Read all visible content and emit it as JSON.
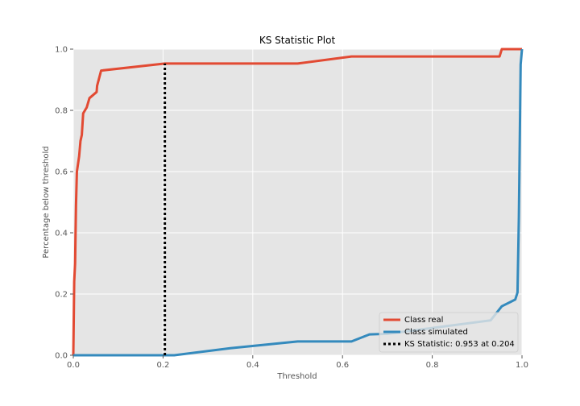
{
  "chart_data": {
    "type": "line",
    "title": "KS Statistic Plot",
    "xlabel": "Threshold",
    "ylabel": "Percentage below threshold",
    "xlim": [
      0,
      1
    ],
    "ylim": [
      0,
      1
    ],
    "grid": true,
    "legend_position": "bottom-right",
    "x_ticks": [
      "0.0",
      "0.2",
      "0.4",
      "0.6",
      "0.8",
      "1.0"
    ],
    "y_ticks": [
      "0.0",
      "0.2",
      "0.4",
      "0.6",
      "0.8",
      "1.0"
    ],
    "series": [
      {
        "name": "Class real",
        "color": "#E24A33",
        "x": [
          0.0,
          0.002,
          0.004,
          0.006,
          0.008,
          0.01,
          0.013,
          0.016,
          0.019,
          0.022,
          0.03,
          0.036,
          0.052,
          0.053,
          0.062,
          0.204,
          0.5,
          0.62,
          0.95,
          0.955,
          1.0
        ],
        "y": [
          0.0,
          0.24,
          0.3,
          0.49,
          0.6,
          0.62,
          0.65,
          0.7,
          0.72,
          0.79,
          0.81,
          0.84,
          0.86,
          0.88,
          0.93,
          0.953,
          0.953,
          0.976,
          0.976,
          1.0,
          1.0
        ]
      },
      {
        "name": "Class simulated",
        "color": "#348ABD",
        "x": [
          0.0,
          0.204,
          0.225,
          0.35,
          0.5,
          0.62,
          0.66,
          0.7,
          0.93,
          0.955,
          0.985,
          0.99,
          0.993,
          0.995,
          0.997,
          1.0
        ],
        "y": [
          0.0,
          0.0,
          0.0,
          0.023,
          0.045,
          0.045,
          0.068,
          0.07,
          0.114,
          0.16,
          0.182,
          0.205,
          0.45,
          0.7,
          0.95,
          1.0
        ]
      }
    ],
    "ks_line": {
      "name": "KS Statistic: 0.953 at 0.204",
      "x": 0.204,
      "y_from": 0.0,
      "y_to": 0.953
    }
  }
}
